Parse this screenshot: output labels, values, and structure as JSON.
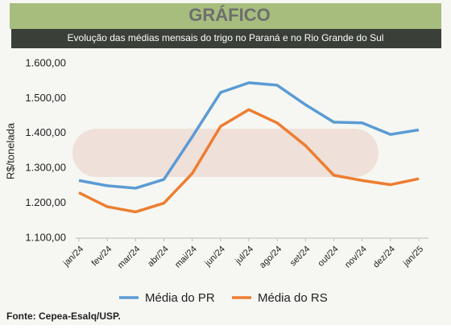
{
  "header": "GRÁFICO",
  "chart_data": {
    "type": "line",
    "title": "Evolução das médias mensais do trigo no Paraná e no Rio Grande do Sul",
    "y_label": "R$/tonelada",
    "categories": [
      "jan/24",
      "fev/24",
      "mar/24",
      "abr/24",
      "mai/24",
      "jun/24",
      "jul/24",
      "ago/24",
      "set/24",
      "out/24",
      "nov/24",
      "dez/24",
      "jan/25"
    ],
    "series": [
      {
        "name": "Média do PR",
        "color": "#5b9bd5",
        "values": [
          1265,
          1250,
          1243,
          1268,
          1390,
          1517,
          1545,
          1538,
          1482,
          1432,
          1430,
          1397,
          1410
        ]
      },
      {
        "name": "Média do RS",
        "color": "#ed7d31",
        "values": [
          1230,
          1190,
          1175,
          1200,
          1285,
          1420,
          1468,
          1430,
          1365,
          1280,
          1265,
          1253,
          1270
        ]
      }
    ],
    "ylim": [
      1100,
      1600
    ],
    "yticks": [
      {
        "value": 1100,
        "label": "1.100,00"
      },
      {
        "value": 1200,
        "label": "1.200,00"
      },
      {
        "value": 1300,
        "label": "1.300,00"
      },
      {
        "value": 1400,
        "label": "1.400,00"
      },
      {
        "value": 1500,
        "label": "1.500,00"
      },
      {
        "value": 1600,
        "label": "1.600,00"
      }
    ],
    "grid": false,
    "legend": "bottom",
    "source": "Fonte: Cepea-Esalq/USP."
  }
}
